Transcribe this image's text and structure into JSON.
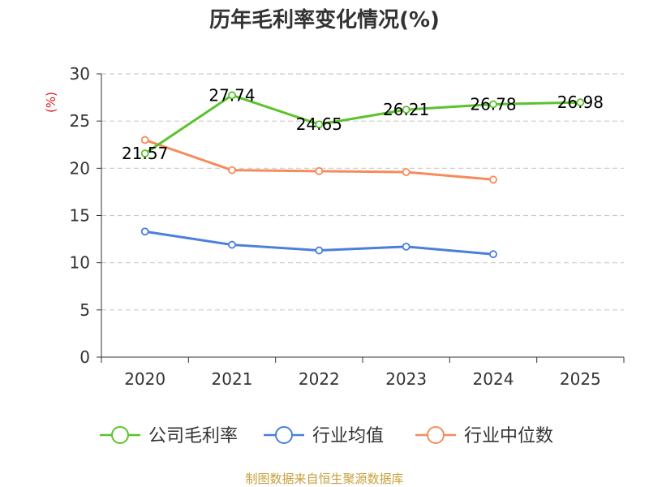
{
  "chart_data": {
    "type": "line",
    "title": "历年毛利率变化情况(%)",
    "ylabel": "(%)",
    "xlabel": "",
    "categories": [
      "2020",
      "2021",
      "2022",
      "2023",
      "2024",
      "2025"
    ],
    "ylim": [
      0,
      30
    ],
    "yticks": [
      0,
      5,
      10,
      15,
      20,
      25,
      30
    ],
    "grid": true,
    "legend_position": "bottom",
    "series": [
      {
        "name": "公司毛利率",
        "color": "#5cc22d",
        "values": [
          21.57,
          27.74,
          24.65,
          26.21,
          26.78,
          26.98
        ],
        "labels": [
          "21.57",
          "27.74",
          "24.65",
          "26.21",
          "26.78",
          "26.98"
        ]
      },
      {
        "name": "行业均值",
        "color": "#4a7fdc",
        "values": [
          13.3,
          11.9,
          11.3,
          11.7,
          10.9,
          null
        ]
      },
      {
        "name": "行业中位数",
        "color": "#f68b5c",
        "values": [
          23.0,
          19.8,
          19.7,
          19.6,
          18.8,
          null
        ]
      }
    ]
  },
  "source": "制图数据来自恒生聚源数据库"
}
